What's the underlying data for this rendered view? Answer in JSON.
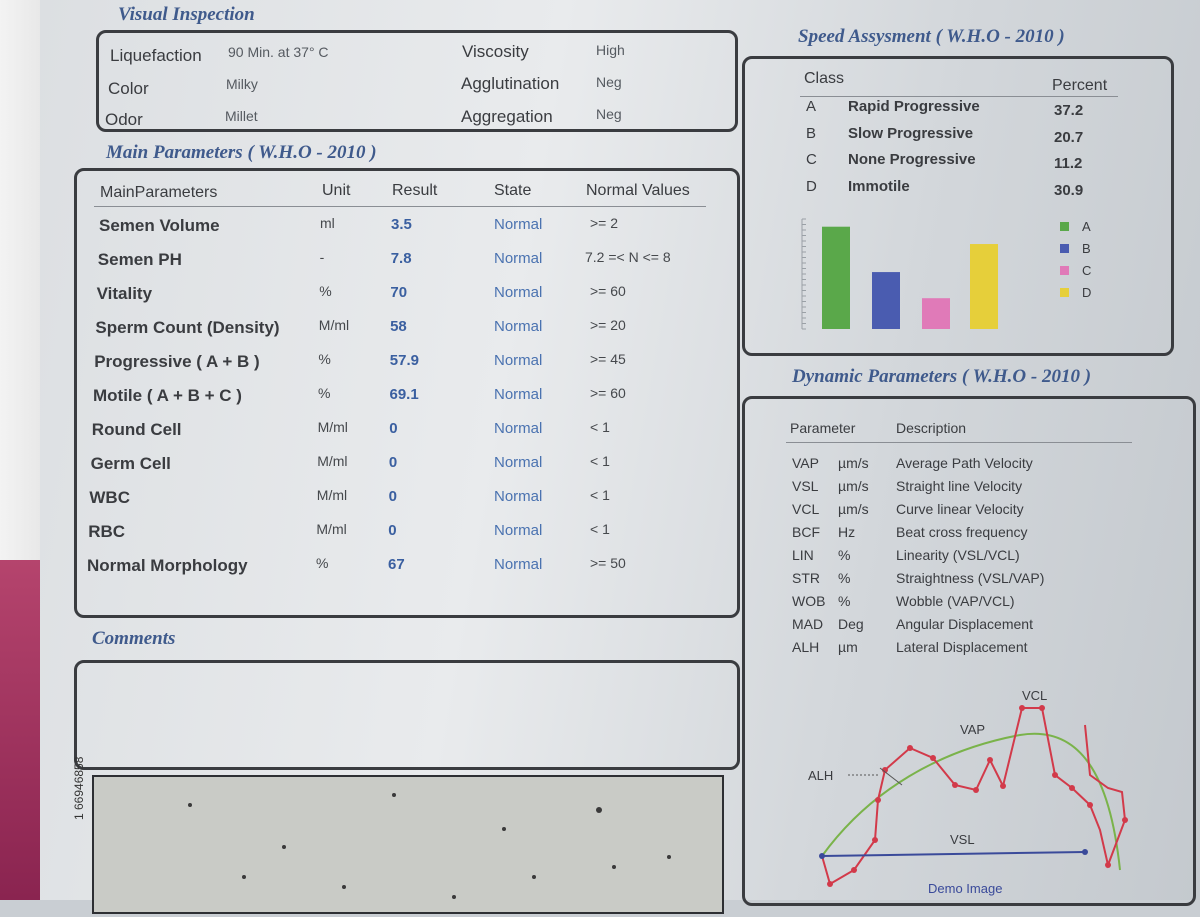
{
  "visual_inspection": {
    "title": "Visual Inspection",
    "liquefaction": {
      "label": "Liquefaction",
      "value": "90 Min. at 37° C"
    },
    "color": {
      "label": "Color",
      "value": "Milky"
    },
    "odor": {
      "label": "Odor",
      "value": "Millet"
    },
    "viscosity": {
      "label": "Viscosity",
      "value": "High"
    },
    "agglutination": {
      "label": "Agglutination",
      "value": "Neg"
    },
    "aggregation": {
      "label": "Aggregation",
      "value": "Neg"
    }
  },
  "main_parameters": {
    "title": "Main Parameters ( W.H.O - 2010 )",
    "headers": [
      "MainParameters",
      "Unit",
      "Result",
      "State",
      "Normal Values"
    ],
    "rows": [
      {
        "name": "Semen Volume",
        "unit": "ml",
        "result": "3.5",
        "state": "Normal",
        "normal": ">= 2"
      },
      {
        "name": "Semen PH",
        "unit": "-",
        "result": "7.8",
        "state": "Normal",
        "normal": "7.2 =< N <= 8"
      },
      {
        "name": "Vitality",
        "unit": "%",
        "result": "70",
        "state": "Normal",
        "normal": ">= 60"
      },
      {
        "name": "Sperm Count (Density)",
        "unit": "M/ml",
        "result": "58",
        "state": "Normal",
        "normal": ">= 20"
      },
      {
        "name": "Progressive ( A + B )",
        "unit": "%",
        "result": "57.9",
        "state": "Normal",
        "normal": ">= 45"
      },
      {
        "name": "Motile ( A + B + C )",
        "unit": "%",
        "result": "69.1",
        "state": "Normal",
        "normal": ">= 60"
      },
      {
        "name": "Round Cell",
        "unit": "M/ml",
        "result": "0",
        "state": "Normal",
        "normal": "< 1"
      },
      {
        "name": "Germ Cell",
        "unit": "M/ml",
        "result": "0",
        "state": "Normal",
        "normal": "< 1"
      },
      {
        "name": "WBC",
        "unit": "M/ml",
        "result": "0",
        "state": "Normal",
        "normal": "< 1"
      },
      {
        "name": "RBC",
        "unit": "M/ml",
        "result": "0",
        "state": "Normal",
        "normal": "< 1"
      },
      {
        "name": "Normal Morphology",
        "unit": "%",
        "result": "67",
        "state": "Normal",
        "normal": ">= 50"
      }
    ]
  },
  "comments": {
    "title": "Comments"
  },
  "speed_assessment": {
    "title": "Speed Assysment ( W.H.O - 2010 )",
    "class_header": "Class",
    "percent_header": "Percent",
    "rows": [
      {
        "code": "A",
        "label": "Rapid Progressive",
        "percent": "37.2"
      },
      {
        "code": "B",
        "label": "Slow Progressive",
        "percent": "20.7"
      },
      {
        "code": "C",
        "label": "None Progressive",
        "percent": "11.2"
      },
      {
        "code": "D",
        "label": "Immotile",
        "percent": "30.9"
      }
    ]
  },
  "chart_data": {
    "type": "bar",
    "title": "",
    "categories": [
      "A",
      "B",
      "C",
      "D"
    ],
    "values": [
      37.2,
      20.7,
      11.2,
      30.9
    ],
    "colors": [
      "#5aa84a",
      "#4a5cb0",
      "#e07ab8",
      "#e6cf3a"
    ],
    "legend": [
      "A",
      "B",
      "C",
      "D"
    ],
    "legend_position": "right",
    "ylim": [
      0,
      40
    ],
    "xlabel": "",
    "ylabel": ""
  },
  "dynamic_parameters": {
    "title": "Dynamic Parameters ( W.H.O - 2010 )",
    "headers": [
      "Parameter",
      "Description"
    ],
    "rows": [
      {
        "param": "VAP",
        "unit": "µm/s",
        "desc": "Average Path Velocity"
      },
      {
        "param": "VSL",
        "unit": "µm/s",
        "desc": "Straight line Velocity"
      },
      {
        "param": "VCL",
        "unit": "µm/s",
        "desc": "Curve linear Velocity"
      },
      {
        "param": "BCF",
        "unit": "Hz",
        "desc": "Beat cross frequency"
      },
      {
        "param": "LIN",
        "unit": "%",
        "desc": "Linearity (VSL/VCL)"
      },
      {
        "param": "STR",
        "unit": "%",
        "desc": "Straightness (VSL/VAP)"
      },
      {
        "param": "WOB",
        "unit": "%",
        "desc": "Wobble (VAP/VCL)"
      },
      {
        "param": "MAD",
        "unit": "Deg",
        "desc": "Angular Displacement"
      },
      {
        "param": "ALH",
        "unit": "µm",
        "desc": "Lateral Displacement"
      }
    ],
    "diagram": {
      "vcl": "VCL",
      "vap": "VAP",
      "alh": "ALH",
      "vsl": "VSL",
      "caption": "Demo Image"
    }
  },
  "serial_number": "1 66946858",
  "colors": {
    "title_blue": "#3f5a8c",
    "result_blue": "#3a5fa0",
    "frame": "#3a3c40"
  }
}
